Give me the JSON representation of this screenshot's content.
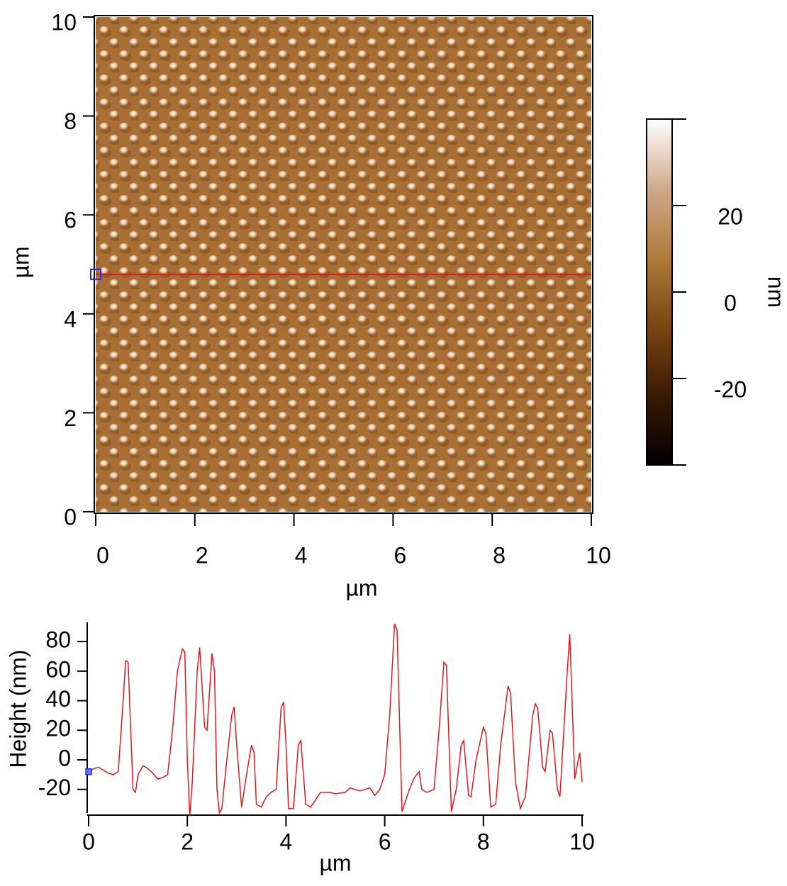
{
  "chart_data": [
    {
      "type": "image",
      "xlabel": "µm",
      "ylabel": "µm",
      "xlim": [
        0,
        10
      ],
      "ylim": [
        0,
        10
      ],
      "xticks": [
        0,
        2,
        4,
        6,
        8,
        10
      ],
      "yticks": [
        0,
        2,
        4,
        6,
        8,
        10
      ],
      "cursor_y": 4.8,
      "cursor_color": "#e8161b",
      "colorbar": {
        "label": "nm",
        "lim": [
          -40,
          40
        ],
        "ticks": [
          -20,
          0,
          20
        ],
        "colormap": [
          "#000000",
          "#3a1a04",
          "#7a4512",
          "#b07a3c",
          "#d1a98a",
          "#ffffff"
        ]
      }
    },
    {
      "type": "line",
      "xlabel": "µm",
      "ylabel": "Height (nm)",
      "color": "#e8161b",
      "xlim": [
        0,
        10
      ],
      "ylim": [
        -35,
        93
      ],
      "xticks": [
        0,
        2,
        4,
        6,
        8,
        10
      ],
      "yticks": [
        -20,
        0,
        20,
        40,
        60,
        80
      ],
      "x": [
        0,
        0.1,
        0.2,
        0.3,
        0.4,
        0.5,
        0.6,
        0.7,
        0.75,
        0.8,
        0.9,
        0.95,
        1.0,
        1.1,
        1.2,
        1.3,
        1.4,
        1.5,
        1.6,
        1.7,
        1.8,
        1.9,
        1.95,
        2.0,
        2.05,
        2.1,
        2.2,
        2.25,
        2.35,
        2.4,
        2.5,
        2.55,
        2.6,
        2.65,
        2.7,
        2.8,
        2.9,
        2.95,
        3.0,
        3.1,
        3.2,
        3.3,
        3.35,
        3.4,
        3.5,
        3.6,
        3.7,
        3.8,
        3.9,
        3.95,
        4.0,
        4.05,
        4.15,
        4.25,
        4.3,
        4.4,
        4.5,
        4.7,
        4.9,
        5.0,
        5.2,
        5.3,
        5.5,
        5.7,
        5.8,
        5.9,
        6.0,
        6.1,
        6.2,
        6.25,
        6.35,
        6.4,
        6.5,
        6.6,
        6.7,
        6.75,
        6.85,
        7.0,
        7.1,
        7.2,
        7.25,
        7.35,
        7.45,
        7.55,
        7.6,
        7.7,
        7.75,
        7.85,
        8.0,
        8.05,
        8.15,
        8.25,
        8.35,
        8.5,
        8.55,
        8.65,
        8.75,
        8.85,
        9.0,
        9.05,
        9.1,
        9.2,
        9.25,
        9.35,
        9.4,
        9.5,
        9.55,
        9.7,
        9.75,
        9.85,
        9.95,
        10.0
      ],
      "values": [
        -8,
        -6,
        -5,
        -7,
        -9,
        -10,
        -8,
        40,
        67,
        66,
        -20,
        -22,
        -10,
        -4,
        -6,
        -9,
        -13,
        -12,
        -10,
        20,
        60,
        75,
        73,
        0,
        -38,
        -15,
        60,
        76,
        22,
        20,
        72,
        60,
        -20,
        -36,
        -33,
        0,
        30,
        36,
        10,
        -32,
        -10,
        10,
        5,
        -30,
        -32,
        -25,
        -22,
        -20,
        35,
        39,
        10,
        -33,
        -33,
        10,
        13,
        -30,
        -32,
        -22,
        -22,
        -23,
        -22,
        -19,
        -21,
        -19,
        -24,
        -20,
        -10,
        30,
        92,
        88,
        -35,
        -30,
        -20,
        -12,
        -8,
        -20,
        -22,
        -20,
        20,
        66,
        64,
        -35,
        -20,
        10,
        13,
        -24,
        -25,
        0,
        22,
        18,
        -32,
        -30,
        10,
        50,
        45,
        -15,
        -33,
        -25,
        30,
        38,
        35,
        -5,
        -8,
        20,
        18,
        -20,
        -25,
        60,
        85,
        -13,
        5,
        -15
      ]
    }
  ]
}
